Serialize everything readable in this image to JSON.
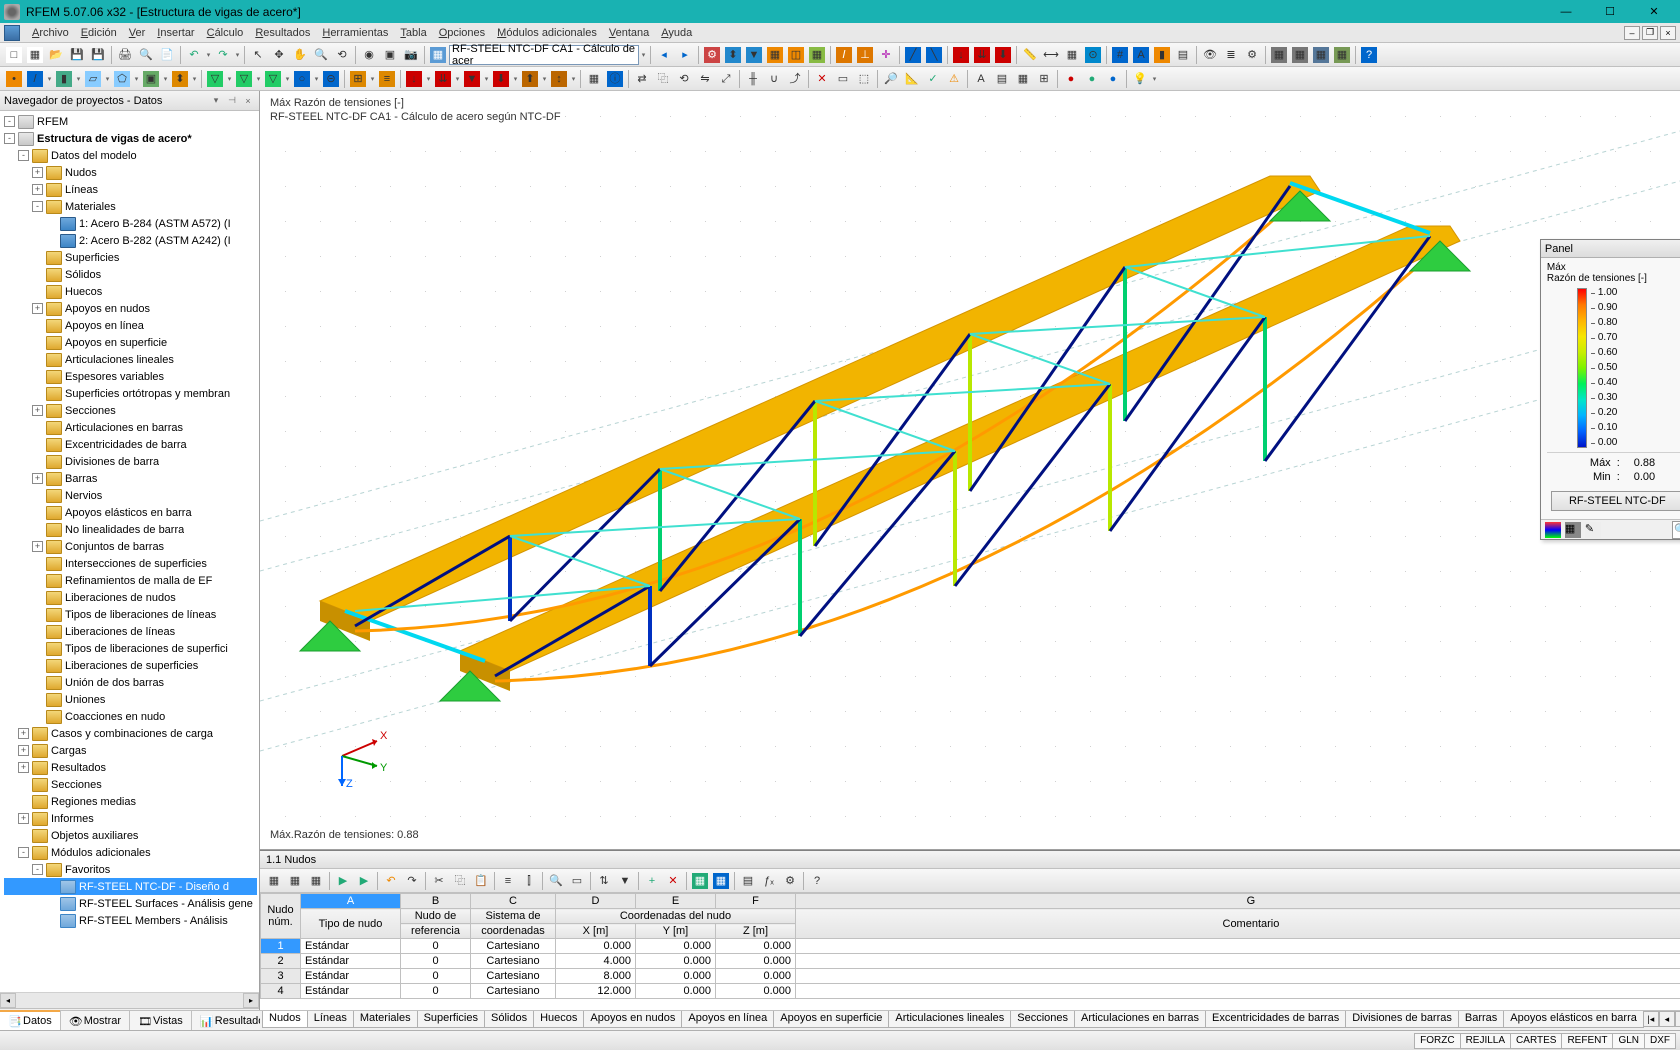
{
  "app": {
    "title": "RFEM 5.07.06 x32 - [Estructura de vigas de acero*]",
    "menus": [
      "Archivo",
      "Edición",
      "Ver",
      "Insertar",
      "Cálculo",
      "Resultados",
      "Herramientas",
      "Tabla",
      "Opciones",
      "Módulos adicionales",
      "Ventana",
      "Ayuda"
    ],
    "combo1": "RF-STEEL NTC-DF CA1 - Cálculo de acer"
  },
  "navigator": {
    "title": "Navegador de proyectos - Datos",
    "root": "RFEM",
    "project": "Estructura de vigas de acero*",
    "nodes": [
      {
        "lvl": 1,
        "exp": "-",
        "ico": "fold",
        "label": "Datos del modelo"
      },
      {
        "lvl": 2,
        "exp": "+",
        "ico": "fold",
        "label": "Nudos"
      },
      {
        "lvl": 2,
        "exp": "+",
        "ico": "fold",
        "label": "Líneas"
      },
      {
        "lvl": 2,
        "exp": "-",
        "ico": "fold",
        "label": "Materiales"
      },
      {
        "lvl": 3,
        "exp": "",
        "ico": "ficon-mat",
        "label": "1: Acero B-284 (ASTM A572) (I"
      },
      {
        "lvl": 3,
        "exp": "",
        "ico": "ficon-mat",
        "label": "2: Acero B-282 (ASTM A242) (I"
      },
      {
        "lvl": 2,
        "exp": "",
        "ico": "fold",
        "label": "Superficies"
      },
      {
        "lvl": 2,
        "exp": "",
        "ico": "fold",
        "label": "Sólidos"
      },
      {
        "lvl": 2,
        "exp": "",
        "ico": "fold",
        "label": "Huecos"
      },
      {
        "lvl": 2,
        "exp": "+",
        "ico": "fold",
        "label": "Apoyos en nudos"
      },
      {
        "lvl": 2,
        "exp": "",
        "ico": "fold",
        "label": "Apoyos en línea"
      },
      {
        "lvl": 2,
        "exp": "",
        "ico": "fold",
        "label": "Apoyos en superficie"
      },
      {
        "lvl": 2,
        "exp": "",
        "ico": "fold",
        "label": "Articulaciones lineales"
      },
      {
        "lvl": 2,
        "exp": "",
        "ico": "fold",
        "label": "Espesores variables"
      },
      {
        "lvl": 2,
        "exp": "",
        "ico": "fold",
        "label": "Superficies ortótropas y membran"
      },
      {
        "lvl": 2,
        "exp": "+",
        "ico": "fold",
        "label": "Secciones"
      },
      {
        "lvl": 2,
        "exp": "",
        "ico": "fold",
        "label": "Articulaciones en barras"
      },
      {
        "lvl": 2,
        "exp": "",
        "ico": "fold",
        "label": "Excentricidades de barra"
      },
      {
        "lvl": 2,
        "exp": "",
        "ico": "fold",
        "label": "Divisiones de barra"
      },
      {
        "lvl": 2,
        "exp": "+",
        "ico": "fold",
        "label": "Barras"
      },
      {
        "lvl": 2,
        "exp": "",
        "ico": "fold",
        "label": "Nervios"
      },
      {
        "lvl": 2,
        "exp": "",
        "ico": "fold",
        "label": "Apoyos elásticos en barra"
      },
      {
        "lvl": 2,
        "exp": "",
        "ico": "fold",
        "label": "No linealidades de barra"
      },
      {
        "lvl": 2,
        "exp": "+",
        "ico": "fold",
        "label": "Conjuntos de barras"
      },
      {
        "lvl": 2,
        "exp": "",
        "ico": "fold",
        "label": "Intersecciones de superficies"
      },
      {
        "lvl": 2,
        "exp": "",
        "ico": "fold",
        "label": "Refinamientos de malla de EF"
      },
      {
        "lvl": 2,
        "exp": "",
        "ico": "fold",
        "label": "Liberaciones de nudos"
      },
      {
        "lvl": 2,
        "exp": "",
        "ico": "fold",
        "label": "Tipos de liberaciones de líneas"
      },
      {
        "lvl": 2,
        "exp": "",
        "ico": "fold",
        "label": "Liberaciones de líneas"
      },
      {
        "lvl": 2,
        "exp": "",
        "ico": "fold",
        "label": "Tipos de liberaciones de superfici"
      },
      {
        "lvl": 2,
        "exp": "",
        "ico": "fold",
        "label": "Liberaciones de superficies"
      },
      {
        "lvl": 2,
        "exp": "",
        "ico": "fold",
        "label": "Unión de dos barras"
      },
      {
        "lvl": 2,
        "exp": "",
        "ico": "fold",
        "label": "Uniones"
      },
      {
        "lvl": 2,
        "exp": "",
        "ico": "fold",
        "label": "Coacciones en nudo"
      },
      {
        "lvl": 1,
        "exp": "+",
        "ico": "fold",
        "label": "Casos y combinaciones de carga"
      },
      {
        "lvl": 1,
        "exp": "+",
        "ico": "fold",
        "label": "Cargas"
      },
      {
        "lvl": 1,
        "exp": "+",
        "ico": "fold",
        "label": "Resultados"
      },
      {
        "lvl": 1,
        "exp": "",
        "ico": "fold",
        "label": "Secciones"
      },
      {
        "lvl": 1,
        "exp": "",
        "ico": "fold",
        "label": "Regiones medias"
      },
      {
        "lvl": 1,
        "exp": "+",
        "ico": "fold",
        "label": "Informes"
      },
      {
        "lvl": 1,
        "exp": "",
        "ico": "fold",
        "label": "Objetos auxiliares"
      },
      {
        "lvl": 1,
        "exp": "-",
        "ico": "fold",
        "label": "Módulos adicionales"
      },
      {
        "lvl": 2,
        "exp": "-",
        "ico": "fold",
        "label": "Favoritos"
      },
      {
        "lvl": 3,
        "exp": "",
        "ico": "ficon-mod",
        "label": "RF-STEEL NTC-DF - Diseño d",
        "sel": true
      },
      {
        "lvl": 3,
        "exp": "",
        "ico": "ficon-mod",
        "label": "RF-STEEL Surfaces - Análisis gene"
      },
      {
        "lvl": 3,
        "exp": "",
        "ico": "ficon-mod",
        "label": "RF-STEEL Members - Análisis"
      }
    ],
    "bottom_tabs": [
      "Datos",
      "Mostrar",
      "Vistas",
      "Resultados"
    ]
  },
  "viewport": {
    "line1": "Máx Razón de tensiones [-]",
    "line2": "RF-STEEL NTC-DF CA1 - Cálculo de acero según NTC-DF",
    "bottom": "Máx.Razón de tensiones: 0.88"
  },
  "panel": {
    "title": "Panel",
    "sub1": "Máx",
    "sub2": "Razón de tensiones [-]",
    "ticks": [
      "1.00",
      "0.90",
      "0.80",
      "0.70",
      "0.60",
      "0.50",
      "0.40",
      "0.30",
      "0.20",
      "0.10",
      "0.00"
    ],
    "colors": [
      "#ff0000",
      "#ff7800",
      "#ffb400",
      "#f7e600",
      "#c8ee00",
      "#7cf200",
      "#00f05a",
      "#00e6c8",
      "#00b4ff",
      "#0064ff",
      "#0014c8"
    ],
    "max_lbl": "Máx",
    "max_val": "0.88",
    "min_lbl": "Min",
    "min_val": "0.00",
    "button": "RF-STEEL NTC-DF"
  },
  "table": {
    "title": "1.1 Nudos",
    "col_letters": [
      "A",
      "B",
      "C",
      "D",
      "E",
      "F",
      "G"
    ],
    "headers": {
      "rowh1": "Nudo",
      "rowh2": "núm.",
      "a": "Tipo de nudo",
      "b": "Nudo de",
      "b2": "referencia",
      "c": "Sistema de",
      "c2": "coordenadas",
      "coord": "Coordenadas del nudo",
      "d": "X [m]",
      "e": "Y [m]",
      "f": "Z [m]",
      "g": "Comentario"
    },
    "rows": [
      {
        "n": "1",
        "a": "Estándar",
        "b": "0",
        "c": "Cartesiano",
        "d": "0.000",
        "e": "0.000",
        "f": "0.000",
        "g": ""
      },
      {
        "n": "2",
        "a": "Estándar",
        "b": "0",
        "c": "Cartesiano",
        "d": "4.000",
        "e": "0.000",
        "f": "0.000",
        "g": ""
      },
      {
        "n": "3",
        "a": "Estándar",
        "b": "0",
        "c": "Cartesiano",
        "d": "8.000",
        "e": "0.000",
        "f": "0.000",
        "g": ""
      },
      {
        "n": "4",
        "a": "Estándar",
        "b": "0",
        "c": "Cartesiano",
        "d": "12.000",
        "e": "0.000",
        "f": "0.000",
        "g": ""
      }
    ],
    "tabs": [
      "Nudos",
      "Líneas",
      "Materiales",
      "Superficies",
      "Sólidos",
      "Huecos",
      "Apoyos en nudos",
      "Apoyos en línea",
      "Apoyos en superficie",
      "Articulaciones lineales",
      "Secciones",
      "Articulaciones en barras",
      "Excentricidades de barras",
      "Divisiones de barras",
      "Barras",
      "Apoyos elásticos en barra"
    ]
  },
  "status": [
    "FORZC",
    "REJILLA",
    "CARTES",
    "REFENT",
    "GLN",
    "DXF"
  ]
}
